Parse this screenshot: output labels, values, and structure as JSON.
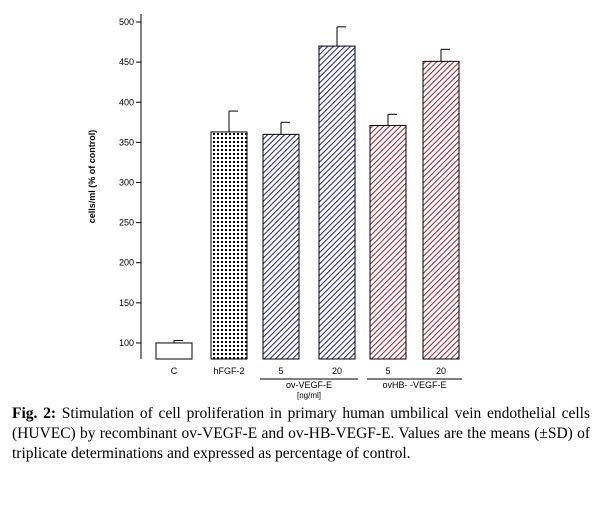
{
  "chart_data": {
    "type": "bar",
    "ylabel": "cells/ml (% of control)",
    "xlabel": "",
    "ylim": [
      80,
      510
    ],
    "yticks": [
      100,
      150,
      200,
      250,
      300,
      350,
      400,
      450,
      500
    ],
    "categories": [
      "C",
      "hFGF-2",
      "5",
      "20",
      "5",
      "20"
    ],
    "values": [
      100,
      363,
      360,
      470,
      371,
      451
    ],
    "errors": [
      3,
      26,
      15,
      24,
      14,
      15
    ],
    "patterns": [
      "none",
      "dots",
      "blue-hatch",
      "blue-hatch",
      "red-hatch",
      "red-hatch"
    ],
    "groups": [
      {
        "label": "ov-VEGF-E",
        "categories": [
          2,
          3
        ],
        "unit": "[ng/ml]"
      },
      {
        "label": "ovHB- -VEGF-E",
        "categories": [
          4,
          5
        ],
        "unit": ""
      }
    ],
    "colors": {
      "blue": "#2b2f8f",
      "red": "#a52a35",
      "black": "#000000"
    }
  },
  "caption": {
    "label": "Fig. 2:",
    "text": "Stimulation of cell proliferation in primary human umbilical vein endothelial cells (HUVEC) by recombinant ov-VEGF-E and ov-HB-VEGF-E. Values are the means (±SD) of triplicate determinations and expressed as percentage of control."
  }
}
